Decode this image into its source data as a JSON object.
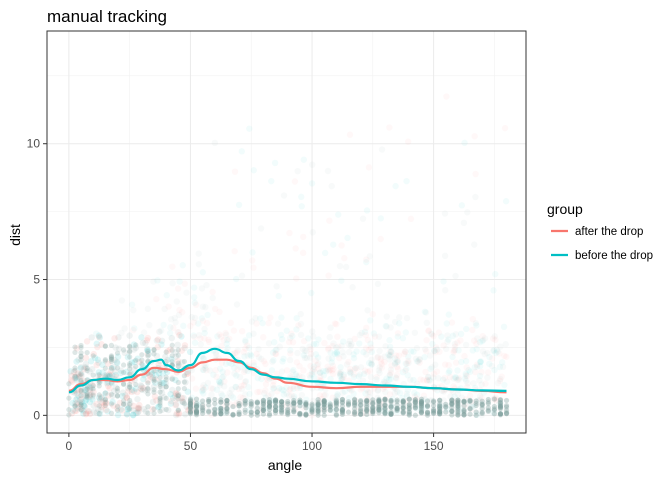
{
  "chart_data": {
    "type": "scatter",
    "title": "manual tracking",
    "xlabel": "angle",
    "ylabel": "dist",
    "xlim": [
      -9,
      188
    ],
    "ylim": [
      -0.65,
      14.15
    ],
    "x_ticks": [
      0,
      50,
      100,
      150
    ],
    "y_ticks": [
      0,
      5,
      10
    ],
    "grid": true,
    "legend": {
      "title": "group",
      "position": "right"
    },
    "series": [
      {
        "name": "after the drop",
        "color": "#F8766D",
        "smooth": {
          "x": [
            0,
            5,
            10,
            15,
            20,
            25,
            30,
            35,
            40,
            45,
            50,
            55,
            60,
            65,
            70,
            75,
            80,
            85,
            90,
            100,
            110,
            120,
            130,
            140,
            150,
            160,
            170,
            180
          ],
          "y": [
            0.9,
            1.15,
            1.3,
            1.3,
            1.25,
            1.3,
            1.5,
            1.75,
            1.7,
            1.6,
            1.75,
            1.95,
            2.05,
            2.05,
            1.95,
            1.75,
            1.55,
            1.35,
            1.2,
            1.05,
            1.0,
            1.05,
            1.05,
            1.05,
            1.0,
            0.95,
            0.9,
            0.85
          ]
        }
      },
      {
        "name": "before the drop",
        "color": "#00BFC4",
        "smooth": {
          "x": [
            0,
            5,
            10,
            15,
            20,
            25,
            30,
            35,
            38,
            40,
            45,
            50,
            55,
            60,
            65,
            70,
            75,
            80,
            85,
            90,
            100,
            110,
            120,
            130,
            140,
            150,
            160,
            170,
            180
          ],
          "y": [
            0.85,
            1.1,
            1.3,
            1.35,
            1.3,
            1.4,
            1.7,
            2.0,
            2.05,
            1.85,
            1.65,
            1.85,
            2.3,
            2.45,
            2.3,
            2.0,
            1.7,
            1.5,
            1.4,
            1.35,
            1.25,
            1.2,
            1.15,
            1.1,
            1.05,
            1.0,
            0.95,
            0.92,
            0.9
          ]
        }
      }
    ],
    "points_color": "#7a9e9c"
  }
}
